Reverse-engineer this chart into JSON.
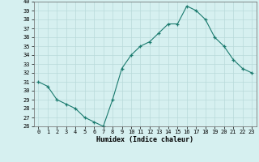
{
  "x": [
    0,
    1,
    2,
    3,
    4,
    5,
    6,
    7,
    8,
    9,
    10,
    11,
    12,
    13,
    14,
    15,
    16,
    17,
    18,
    19,
    20,
    21,
    22,
    23
  ],
  "y": [
    31,
    30.5,
    29,
    28.5,
    28,
    27,
    26.5,
    26,
    29,
    32.5,
    34,
    35,
    35.5,
    36.5,
    37.5,
    37.5,
    39.5,
    39,
    38,
    36,
    35,
    33.5,
    32.5,
    32
  ],
  "line_color": "#1a7a6e",
  "marker_color": "#1a7a6e",
  "bg_color": "#d6f0f0",
  "grid_color": "#b8dada",
  "xlabel": "Humidex (Indice chaleur)",
  "ylim": [
    26,
    40
  ],
  "xlim": [
    -0.5,
    23.5
  ],
  "yticks": [
    26,
    27,
    28,
    29,
    30,
    31,
    32,
    33,
    34,
    35,
    36,
    37,
    38,
    39,
    40
  ],
  "xticks": [
    0,
    1,
    2,
    3,
    4,
    5,
    6,
    7,
    8,
    9,
    10,
    11,
    12,
    13,
    14,
    15,
    16,
    17,
    18,
    19,
    20,
    21,
    22,
    23
  ]
}
